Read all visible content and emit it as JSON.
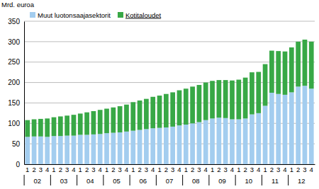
{
  "chart_data": {
    "type": "bar",
    "stacked": true,
    "grid": true,
    "legend": "top-left",
    "y_label": "Mrd. euroa",
    "categories": [
      "1",
      "2",
      "3",
      "4",
      "1",
      "2",
      "3",
      "4",
      "1",
      "2",
      "3",
      "4",
      "1",
      "2",
      "3",
      "4",
      "1",
      "2",
      "3",
      "4",
      "1",
      "2",
      "3",
      "4",
      "1",
      "2",
      "3",
      "4",
      "1",
      "2",
      "3",
      "4",
      "1",
      "2",
      "3",
      "4",
      "1",
      "2",
      "3",
      "4",
      "1",
      "2",
      "3",
      "4"
    ],
    "category_groups": [
      "02",
      "03",
      "04",
      "05",
      "06",
      "07",
      "08",
      "09",
      "10",
      "11",
      "12"
    ],
    "ylim": [
      0,
      350
    ],
    "yticks": [
      0,
      50,
      100,
      150,
      200,
      250,
      300,
      350
    ],
    "series": [
      {
        "name": "Muut luotonsaajasektorit",
        "color": "#a3cdef",
        "values": [
          67,
          68,
          68,
          67,
          69,
          69,
          70,
          70,
          72,
          72,
          73,
          74,
          76,
          77,
          78,
          80,
          82,
          84,
          86,
          88,
          89,
          90,
          92,
          95,
          97,
          100,
          103,
          108,
          112,
          114,
          113,
          110,
          110,
          112,
          122,
          125,
          143,
          175,
          172,
          170,
          176,
          190,
          192,
          185
        ]
      },
      {
        "name": "Kotitaloudet",
        "color": "#38a846",
        "values": [
          41,
          42,
          43,
          45,
          46,
          48,
          49,
          51,
          52,
          55,
          57,
          59,
          60,
          62,
          64,
          66,
          70,
          72,
          74,
          77,
          79,
          82,
          84,
          86,
          88,
          90,
          91,
          92,
          92,
          92,
          93,
          95,
          97,
          100,
          103,
          101,
          102,
          103,
          105,
          106,
          110,
          110,
          113,
          115
        ]
      }
    ]
  }
}
